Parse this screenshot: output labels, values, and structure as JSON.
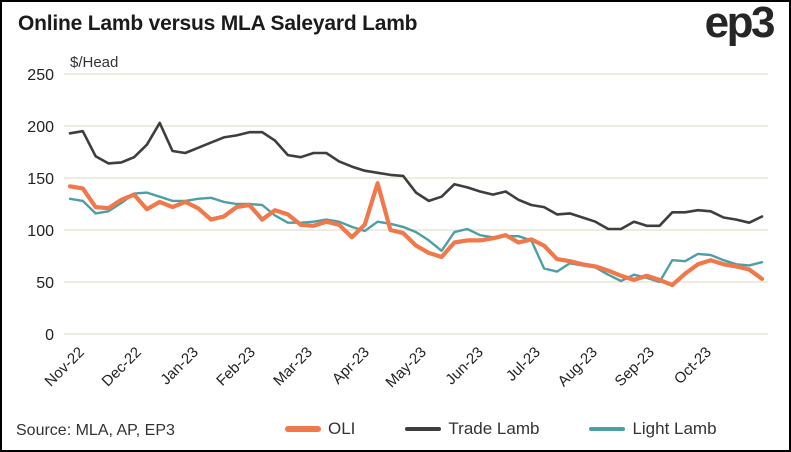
{
  "header": {
    "title": "Online Lamb versus MLA Saleyard Lamb",
    "logo": "ep3"
  },
  "source": "Source: MLA, AP, EP3",
  "chart_data": {
    "type": "line",
    "title": "Online Lamb versus MLA Saleyard Lamb",
    "ylabel": "$/Head",
    "xlabel": "",
    "ylim": [
      0,
      250
    ],
    "yticks": [
      0,
      50,
      100,
      150,
      200,
      250
    ],
    "grid": true,
    "legend_position": "bottom",
    "x_unit": "weeks (Nov-2022 to Oct-2023)",
    "x_tick_labels": [
      "Nov-22",
      "Dec-22",
      "Jan-23",
      "Feb-23",
      "Mar-23",
      "Apr-23",
      "May-23",
      "Jun-23",
      "Jul-23",
      "Aug-23",
      "Sep-23",
      "Oct-23"
    ],
    "colors": {
      "oli": "#F0784A",
      "trade_lamb": "#3E3E3E",
      "light_lamb": "#4D9FA6",
      "gridline": "#EBE8DD",
      "text": "#222222"
    },
    "series": [
      {
        "name": "Trade Lamb",
        "color": "#3E3E3E",
        "line_width": 2.6,
        "values": [
          193,
          195,
          171,
          164,
          165,
          170,
          182,
          203,
          176,
          174,
          179,
          184,
          189,
          191,
          194,
          194,
          186,
          172,
          170,
          174,
          174,
          166,
          161,
          157,
          155,
          153,
          152,
          136,
          128,
          132,
          144,
          141,
          137,
          134,
          137,
          129,
          124,
          122,
          115,
          116,
          112,
          108,
          101,
          101,
          108,
          104,
          104,
          117,
          117,
          119,
          118,
          112,
          110,
          107,
          113
        ]
      },
      {
        "name": "Light Lamb",
        "color": "#4D9FA6",
        "line_width": 2.4,
        "values": [
          130,
          128,
          116,
          118,
          126,
          135,
          136,
          132,
          128,
          128,
          130,
          131,
          127,
          125,
          125,
          124,
          114,
          107,
          107,
          108,
          110,
          108,
          103,
          99,
          108,
          106,
          103,
          98,
          90,
          80,
          98,
          101,
          95,
          93,
          94,
          94,
          90,
          63,
          60,
          68,
          66,
          64,
          57,
          51,
          57,
          54,
          50,
          71,
          70,
          77,
          76,
          71,
          67,
          66,
          69
        ]
      },
      {
        "name": "OLI",
        "color": "#F0784A",
        "line_width": 4.2,
        "values": [
          142,
          140,
          122,
          121,
          129,
          134,
          120,
          127,
          122,
          127,
          121,
          110,
          113,
          122,
          124,
          110,
          119,
          115,
          105,
          104,
          108,
          105,
          93,
          105,
          145,
          100,
          97,
          85,
          78,
          74,
          88,
          90,
          90,
          92,
          95,
          88,
          91,
          85,
          72,
          70,
          67,
          65,
          61,
          56,
          52,
          56,
          52,
          47,
          58,
          67,
          71,
          67,
          65,
          62,
          53
        ]
      }
    ],
    "legend_order": [
      "OLI",
      "Trade Lamb",
      "Light Lamb"
    ]
  }
}
